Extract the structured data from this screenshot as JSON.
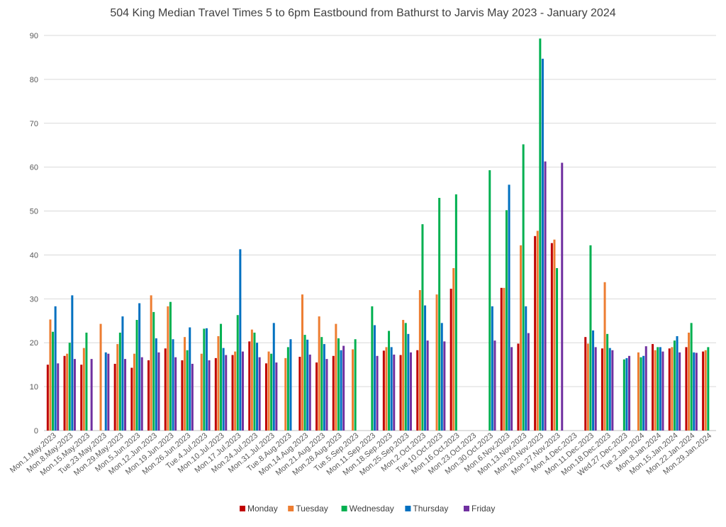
{
  "chart_data": {
    "type": "bar",
    "title": "504 King Median Travel Times 5 to 6pm Eastbound from Bathurst to Jarvis May 2023 - January 2024",
    "xlabel": "",
    "ylabel": "",
    "ylim": [
      0,
      90
    ],
    "yticks": [
      "0",
      "10",
      "20",
      "30",
      "40",
      "50",
      "60",
      "70",
      "80",
      "90"
    ],
    "grid": "horizontal",
    "legend_position": "bottom",
    "categories": [
      "Mon.1.May.2023",
      "Mon.8.May.2023",
      "Mon.15.May.2023",
      "Tue.23.May.2023",
      "Mon.29.May.2023",
      "Mon.5.Jun.2023",
      "Mon.12.Jun.2023",
      "Mon.19.Jun.2023",
      "Mon.26.Jun.2023",
      "Tue.4.Jul.2023",
      "Mon.10.Jul.2023",
      "Mon.17.Jul.2023",
      "Mon.24.Jul.2023",
      "Mon.31.Jul.2023",
      "Tue.8.Aug.2023",
      "Mon.14.Aug.2023",
      "Mon.21.Aug.2023",
      "Mon.28.Aug.2023",
      "Tue.5.Sep.2023",
      "Mon.11.Sep.2023",
      "Mon.18.Sep.2023",
      "Mon.25.Sep.2023",
      "Mon.2.Oct.2023",
      "Tue.10.Oct.2023",
      "Mon.16.Oct.2023",
      "Mon.23.Oct.2023",
      "Mon.30.Oct.2023",
      "Mon.6.Nov.2023",
      "Mon.13.Nov.2023",
      "Mon.20.Nov.2023",
      "Mon.27.Nov.2023",
      "Mon.4.Dec.2023",
      "Mon.11.Dec.2023",
      "Mon.18.Dec.2023",
      "Wed.27.Dec.2023",
      "Tue.2.Jan.2024",
      "Mon.8.Jan.2024",
      "Mon.15.Jan.2024",
      "Mon.22.Jan.2024",
      "Mon.29.Jan.2024"
    ],
    "series": [
      {
        "name": "Monday",
        "color": "#c00000",
        "values": [
          15,
          17,
          15,
          null,
          15.2,
          14.3,
          16,
          18.7,
          16,
          null,
          16.5,
          17.2,
          20.3,
          15.3,
          null,
          16.8,
          15.5,
          17,
          null,
          null,
          18.2,
          17.2,
          18.3,
          null,
          32.3,
          null,
          null,
          32.5,
          19.8,
          44.3,
          42.7,
          null,
          21.3,
          18.7,
          null,
          null,
          19.7,
          18.7,
          19,
          18
        ]
      },
      {
        "name": "Tuesday",
        "color": "#ed7d31",
        "values": [
          25.3,
          17.5,
          18.8,
          24.3,
          19.7,
          17.5,
          30.8,
          28.3,
          21.3,
          17.5,
          21.5,
          18,
          23,
          18,
          16.5,
          31,
          26,
          24.3,
          18.5,
          null,
          19,
          25.2,
          32,
          31,
          37,
          null,
          null,
          32.5,
          42.2,
          45.5,
          43.5,
          null,
          19.8,
          33.8,
          null,
          17.8,
          18.3,
          19,
          22.3,
          18.3
        ]
      },
      {
        "name": "Wednesday",
        "color": "#00b050",
        "values": [
          22.5,
          20,
          22.3,
          null,
          22.3,
          25.2,
          27,
          29.3,
          18.3,
          23.2,
          24.3,
          26.3,
          22.3,
          17.5,
          19,
          21.8,
          21.3,
          21,
          20.8,
          28.3,
          22.7,
          24.5,
          47,
          53,
          53.8,
          null,
          59.3,
          50.2,
          65.2,
          89.3,
          37,
          null,
          42.2,
          22,
          16.2,
          16.7,
          19,
          20.5,
          24.5,
          19
        ]
      },
      {
        "name": "Thursday",
        "color": "#0070c0",
        "values": [
          28.3,
          30.8,
          null,
          17.8,
          26,
          29,
          21,
          20.8,
          23.5,
          23.3,
          18.8,
          41.3,
          20,
          24.5,
          20.8,
          20.7,
          19.7,
          18.3,
          null,
          24,
          19,
          22,
          28.5,
          24.5,
          null,
          null,
          28.3,
          56,
          28.3,
          84.7,
          null,
          null,
          22.8,
          18.8,
          16.5,
          17,
          19,
          21.5,
          17.8,
          null
        ]
      },
      {
        "name": "Friday",
        "color": "#7030a0",
        "values": [
          15.3,
          16.3,
          16.3,
          17.5,
          16.3,
          16.7,
          17.8,
          16.7,
          15.2,
          16,
          17.2,
          18,
          16.7,
          15.5,
          null,
          17.3,
          16.3,
          19.3,
          null,
          17,
          17.3,
          17.8,
          20.5,
          20.3,
          null,
          null,
          20.5,
          19,
          22.2,
          61.3,
          61,
          null,
          19,
          18.3,
          17,
          19.2,
          18,
          17.8,
          17.7,
          null
        ]
      }
    ]
  }
}
